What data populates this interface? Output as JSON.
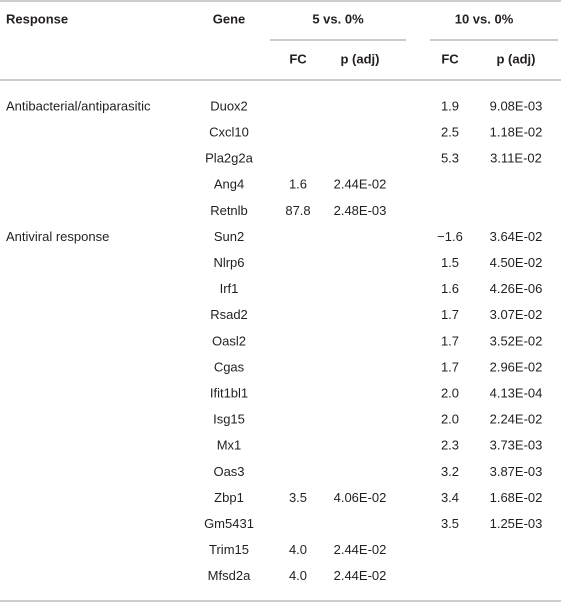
{
  "table": {
    "header": [
      "Response",
      "Gene",
      "5 vs. 0%",
      "10 vs. 0%"
    ],
    "subheader": [
      "FC",
      "p (adj)",
      "FC",
      "p (adj)"
    ],
    "rows": [
      [
        "Antibacterial/antiparasitic",
        "Duox2",
        null,
        null,
        "1.9",
        "9.08E-03"
      ],
      [
        null,
        "Cxcl10",
        null,
        null,
        "2.5",
        "1.18E-02"
      ],
      [
        null,
        "Pla2g2a",
        null,
        null,
        "5.3",
        "3.11E-02"
      ],
      [
        null,
        "Ang4",
        "1.6",
        "2.44E-02",
        null,
        null
      ],
      [
        null,
        "Retnlb",
        "87.8",
        "2.48E-03",
        null,
        null
      ],
      [
        "Antiviral response",
        "Sun2",
        null,
        null,
        "−1.6",
        "3.64E-02"
      ],
      [
        null,
        "Nlrp6",
        null,
        null,
        "1.5",
        "4.50E-02"
      ],
      [
        null,
        "Irf1",
        null,
        null,
        "1.6",
        "4.26E-06"
      ],
      [
        null,
        "Rsad2",
        null,
        null,
        "1.7",
        "3.07E-02"
      ],
      [
        null,
        "Oasl2",
        null,
        null,
        "1.7",
        "3.52E-02"
      ],
      [
        null,
        "Cgas",
        null,
        null,
        "1.7",
        "2.96E-02"
      ],
      [
        null,
        "Ifit1bl1",
        null,
        null,
        "2.0",
        "4.13E-04"
      ],
      [
        null,
        "Isg15",
        null,
        null,
        "2.0",
        "2.24E-02"
      ],
      [
        null,
        "Mx1",
        null,
        null,
        "2.3",
        "3.73E-03"
      ],
      [
        null,
        "Oas3",
        null,
        null,
        "3.2",
        "3.87E-03"
      ],
      [
        null,
        "Zbp1",
        "3.5",
        "4.06E-02",
        "3.4",
        "1.68E-02"
      ],
      [
        null,
        "Gm5431",
        null,
        null,
        "3.5",
        "1.25E-03"
      ],
      [
        null,
        "Trim15",
        "4.0",
        "2.44E-02",
        null,
        null
      ],
      [
        null,
        "Mfsd2a",
        "4.0",
        "2.44E-02",
        null,
        null
      ]
    ]
  }
}
